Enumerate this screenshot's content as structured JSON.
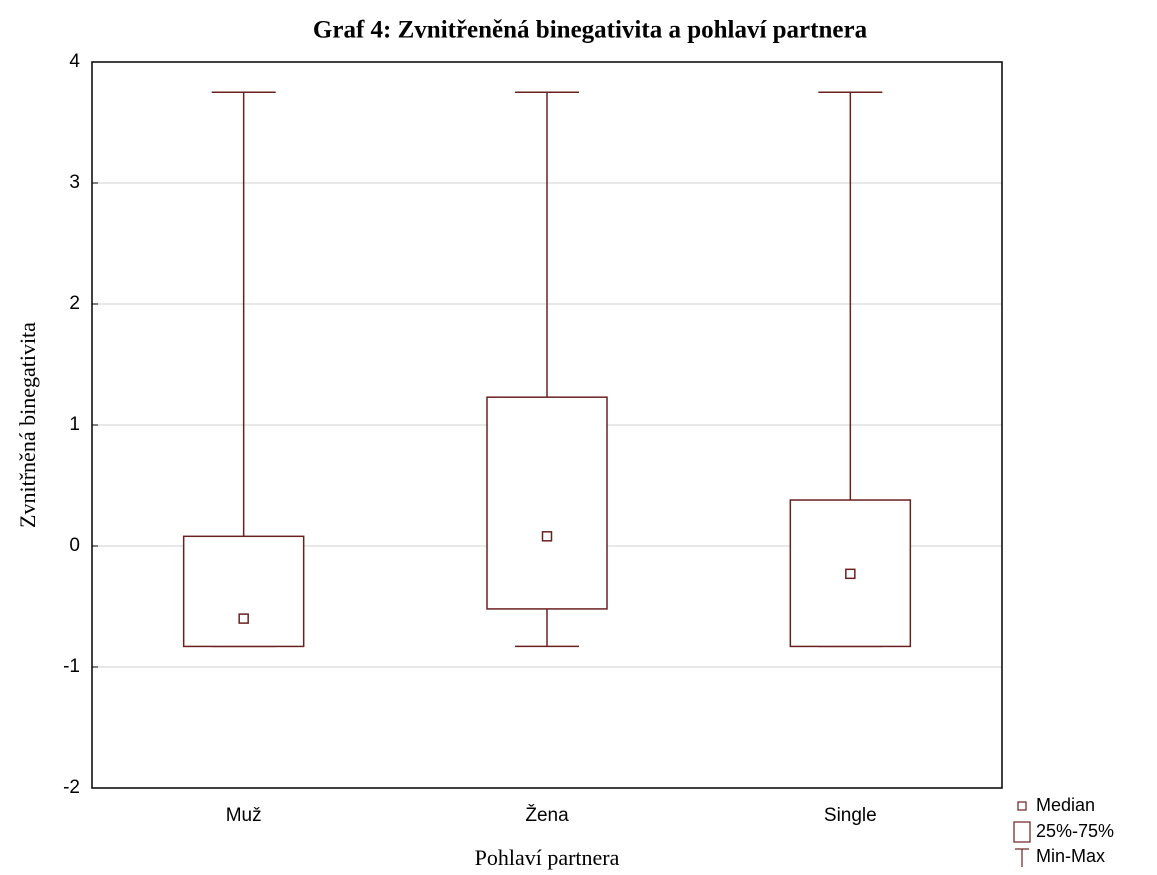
{
  "chart_data": {
    "type": "box",
    "title": "Graf 4: Zvnitřeněná binegativita a pohlaví partnera",
    "xlabel": "Pohlaví partnera",
    "ylabel": "Zvnitřněná binegativita",
    "categories": [
      "Muž",
      "Žena",
      "Single"
    ],
    "min": [
      -0.83,
      -0.83,
      -0.83
    ],
    "q1": [
      -0.83,
      -0.52,
      -0.83
    ],
    "median": [
      -0.6,
      0.08,
      -0.23
    ],
    "q3": [
      0.08,
      1.23,
      0.38
    ],
    "max": [
      3.75,
      3.75,
      3.75
    ],
    "legend": [
      "Median",
      "25%-75%",
      "Min-Max"
    ],
    "color": "#6b2020",
    "ylim": [
      -2,
      4
    ],
    "yticks": [
      -2,
      -1,
      0,
      1,
      2,
      3,
      4
    ],
    "grid": true
  }
}
